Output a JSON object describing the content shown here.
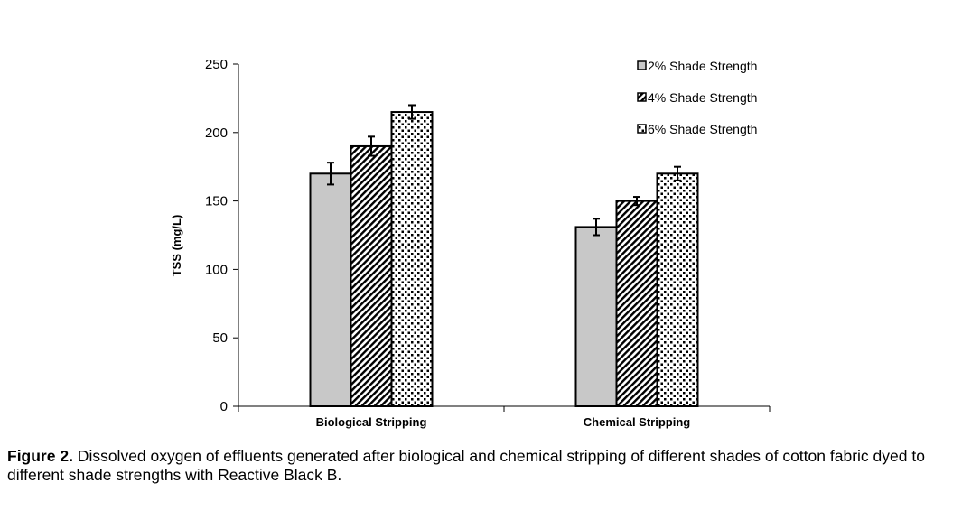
{
  "chart_data": {
    "type": "bar",
    "title": "",
    "xlabel": "",
    "ylabel": "TSS (mg/L)",
    "ylim": [
      0,
      250
    ],
    "yticks": [
      0,
      50,
      100,
      150,
      200,
      250
    ],
    "categories": [
      "Biological Stripping",
      "Chemical Stripping"
    ],
    "series": [
      {
        "name": "2% Shade Strength",
        "values": [
          170,
          131
        ],
        "errors": [
          8,
          6
        ]
      },
      {
        "name": "4% Shade Strength",
        "values": [
          190,
          150
        ],
        "errors": [
          7,
          3
        ]
      },
      {
        "name": "6% Shade Strength",
        "values": [
          215,
          170
        ],
        "errors": [
          5,
          5
        ]
      }
    ],
    "legend_position": "top-right",
    "grid": false
  },
  "caption": {
    "label": "Figure 2.",
    "text": " Dissolved oxygen of effluents generated after biological and chemical stripping of different shades of cotton fabric dyed to different shade strengths with Reactive Black B."
  }
}
